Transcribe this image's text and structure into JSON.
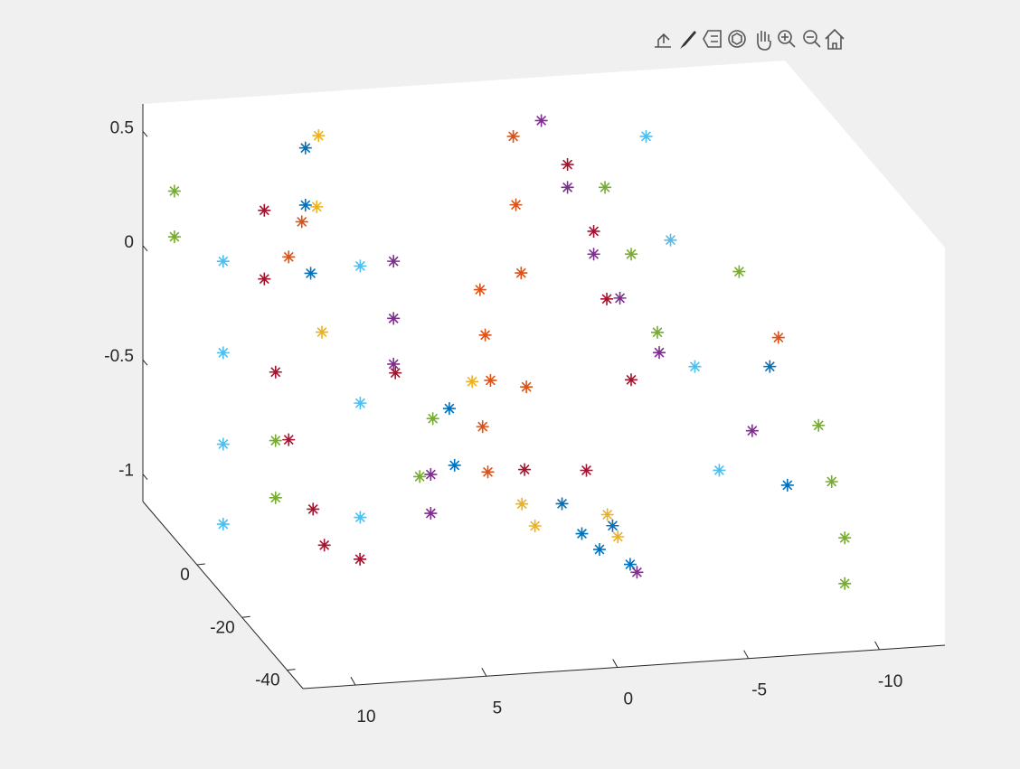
{
  "chart_data": {
    "type": "scatter3",
    "xlim": [
      -12.5,
      12
    ],
    "ylim": [
      -47,
      24
    ],
    "zlim": [
      -1.12,
      0.62
    ],
    "xticks": [
      -10,
      -5,
      0,
      5,
      10
    ],
    "yticks": [
      -40,
      -20,
      0
    ],
    "zticks": [
      -1,
      -0.5,
      0,
      0.5
    ],
    "series": [
      {
        "color": "#0072BD",
        "x": [
          7,
          7,
          6.8,
          -1.5,
          -2,
          -2.5,
          -3,
          -3.5,
          2.8,
          2.6,
          -9,
          -9.5
        ],
        "y": [
          10,
          10,
          10,
          -5,
          -8,
          -10,
          -10,
          -12,
          -5,
          -5,
          -10,
          -12
        ],
        "z": [
          0.55,
          0.3,
          0,
          -0.9,
          -1,
          -1.05,
          -0.95,
          -1.1,
          -0.45,
          -0.7,
          -0.3,
          -0.8
        ]
      },
      {
        "color": "#D95319",
        "x": [
          8,
          8.5,
          1.2,
          1,
          0.8,
          1.1,
          0.9,
          -0.5,
          -0.6,
          -0.8,
          -1,
          -9.5
        ],
        "y": [
          0,
          0,
          0,
          0,
          0,
          0,
          0,
          5,
          5,
          5,
          5,
          -8
        ],
        "z": [
          0.35,
          0.2,
          0,
          -0.2,
          -0.4,
          -0.6,
          -0.8,
          0.6,
          0.3,
          0,
          -0.5,
          -0.2
        ]
      },
      {
        "color": "#EDB120",
        "x": [
          6.5,
          7,
          6.8,
          -0.4,
          -0.9,
          -2.8,
          -3.2,
          1.5
        ],
        "y": [
          10,
          5,
          5,
          0,
          0,
          -10,
          -10,
          0
        ],
        "z": [
          0.6,
          0.35,
          -0.2,
          -0.95,
          -1.05,
          -0.9,
          -1,
          -0.4
        ]
      },
      {
        "color": "#7E2F8E",
        "x": [
          4.5,
          4.5,
          4.5,
          4.8,
          4.8,
          -2,
          -3,
          -4,
          -5,
          -6.5,
          -8.5,
          -3.5
        ],
        "y": [
          0,
          0,
          0,
          -20,
          -20,
          10,
          10,
          10,
          10,
          10,
          -8,
          -15
        ],
        "z": [
          0.15,
          -0.1,
          -0.3,
          -0.55,
          -0.72,
          0.6,
          0.3,
          0,
          -0.2,
          -0.45,
          -0.6,
          -1.1
        ]
      },
      {
        "color": "#77AC30",
        "x": [
          12,
          12,
          9,
          9,
          3,
          3.5,
          -4,
          -5,
          -6,
          -8,
          -10,
          -10.5,
          -11,
          -11
        ],
        "y": [
          10,
          10,
          0,
          0,
          0,
          0,
          5,
          5,
          5,
          -8,
          -20,
          -20,
          -20,
          -20
        ],
        "z": [
          0.4,
          0.2,
          -0.6,
          -0.85,
          -0.55,
          -0.8,
          0.35,
          0.05,
          -0.3,
          0.1,
          -0.45,
          -0.7,
          -0.95,
          -1.15
        ]
      },
      {
        "color": "#4DBEEE",
        "x": [
          11,
          11,
          11,
          11,
          6.2,
          6.2,
          6.2,
          -6,
          -6.5,
          -7,
          -7.5
        ],
        "y": [
          0,
          0,
          0,
          0,
          -5,
          -5,
          -5,
          10,
          5,
          0,
          -5
        ],
        "z": [
          0.2,
          -0.2,
          -0.6,
          -0.95,
          0.2,
          -0.4,
          -0.9,
          0.5,
          0.1,
          -0.4,
          -0.8
        ]
      },
      {
        "color": "#A2142F",
        "x": [
          9,
          9,
          9,
          8.5,
          8,
          8,
          7.5,
          4,
          -0.5,
          -3,
          -4,
          -4.5,
          -5,
          -2
        ],
        "y": [
          5,
          5,
          0,
          0,
          -5,
          -10,
          -20,
          5,
          0,
          10,
          10,
          10,
          5,
          -10
        ],
        "z": [
          0.35,
          0.05,
          -0.3,
          -0.6,
          -0.85,
          -0.95,
          -0.9,
          -0.4,
          -0.8,
          0.4,
          0.1,
          -0.2,
          -0.5,
          -0.7
        ]
      }
    ]
  }
}
